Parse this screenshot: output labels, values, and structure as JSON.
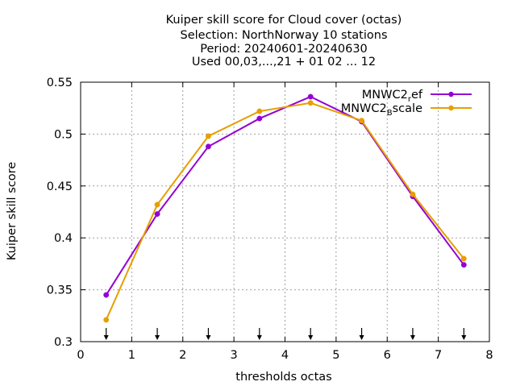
{
  "chart_data": {
    "type": "line",
    "title_lines": [
      "Kuiper skill score  for Cloud cover (octas)",
      "Selection: NorthNorway      10 stations",
      "Period: 20240601-20240630",
      "Used 00,03,...,21 + 01 02 ... 12"
    ],
    "xlabel": "thresholds octas",
    "ylabel": "Kuiper skill score",
    "xlim": [
      0,
      8
    ],
    "ylim": [
      0.3,
      0.55
    ],
    "xticks": [
      0,
      1,
      2,
      3,
      4,
      5,
      6,
      7,
      8
    ],
    "xtick_labels": [
      "0",
      "1",
      "2",
      "3",
      "4",
      "5",
      "6",
      "7",
      "8"
    ],
    "yticks": [
      0.3,
      0.35,
      0.4,
      0.45,
      0.5,
      0.55
    ],
    "ytick_labels": [
      "0.3",
      "0.35",
      "0.4",
      "0.45",
      "0.5",
      "0.55"
    ],
    "grid": true,
    "legend_position": "top-right",
    "threshold_arrows_x": [
      0.5,
      1.5,
      2.5,
      3.5,
      4.5,
      5.5,
      6.5,
      7.5
    ],
    "series": [
      {
        "name_main": "MNWC2",
        "name_sub": "r",
        "name_rest": "ef",
        "color": "#9400d3",
        "x": [
          0.5,
          1.5,
          2.5,
          3.5,
          4.5,
          5.5,
          6.5,
          7.5
        ],
        "y": [
          0.345,
          0.423,
          0.488,
          0.515,
          0.536,
          0.512,
          0.44,
          0.374
        ]
      },
      {
        "name_main": "MNWC2",
        "name_sub": "B",
        "name_rest": "scale",
        "color": "#e69f00",
        "x": [
          0.5,
          1.5,
          2.5,
          3.5,
          4.5,
          5.5,
          6.5,
          7.5
        ],
        "y": [
          0.321,
          0.432,
          0.498,
          0.522,
          0.53,
          0.513,
          0.442,
          0.38
        ]
      }
    ]
  }
}
